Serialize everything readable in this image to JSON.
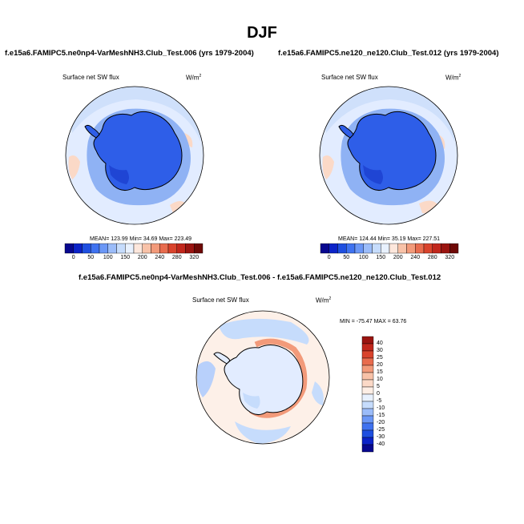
{
  "figure": {
    "title": "DJF"
  },
  "panels": [
    {
      "case_title": "f.e15a6.FAMIPC5.ne0np4-VarMeshNH3.Club_Test.006 (yrs 1979-2004)",
      "variable": "Surface net SW flux",
      "units": "W/m",
      "units_sup": "2",
      "stats": {
        "mean": "123.99",
        "min": "34.69",
        "max": "223.49"
      },
      "stats_text": "MEAN= 123.99  Min=  34.69  Max= 223.49"
    },
    {
      "case_title": "f.e15a6.FAMIPC5.ne120_ne120.Club_Test.012 (yrs 1979-2004)",
      "variable": "Surface net SW flux",
      "units": "W/m",
      "units_sup": "2",
      "stats": {
        "mean": "124.44",
        "min": "35.19",
        "max": "227.51"
      },
      "stats_text": "MEAN= 124.44  Min=  35.19  Max= 227.51"
    },
    {
      "case_title": "f.e15a6.FAMIPC5.ne0np4-VarMeshNH3.Club_Test.006 - f.e15a6.FAMIPC5.ne120_ne120.Club_Test.012",
      "variable": "Surface net SW flux",
      "units": "W/m",
      "units_sup": "2",
      "stats": {
        "min": "-75.47",
        "max": "63.76"
      },
      "stats_text": "MIN = -75.47 MAX =  63.76"
    }
  ],
  "colorbars": {
    "absolute": {
      "orientation": "horizontal",
      "tick_labels": [
        "0",
        "50",
        "100",
        "150",
        "200",
        "240",
        "280",
        "320"
      ],
      "colors": [
        "#08088f",
        "#0c23c8",
        "#1f4fe0",
        "#3f72f0",
        "#6b97f6",
        "#9bbcf9",
        "#c6dcfc",
        "#e8f1fe",
        "#fde7dc",
        "#f8c2a8",
        "#f29a7a",
        "#e86c4e",
        "#d9432c",
        "#c1271c",
        "#9a1410",
        "#6e0906"
      ]
    },
    "difference": {
      "orientation": "vertical",
      "tick_labels": [
        "40",
        "30",
        "25",
        "20",
        "15",
        "10",
        "5",
        "0",
        "-5",
        "-10",
        "-15",
        "-20",
        "-25",
        "-30",
        "-40"
      ],
      "colors": [
        "#9a1410",
        "#c1271c",
        "#d9432c",
        "#e86c4e",
        "#f29a7a",
        "#f8c2a8",
        "#fbd9c7",
        "#fdeee5",
        "#e8f1fe",
        "#c6dcfc",
        "#9bbcf9",
        "#6b97f6",
        "#3f72f0",
        "#1f4fe0",
        "#0c23c8",
        "#08088f"
      ]
    }
  },
  "map": {
    "projection": "polar stereographic (south pole)",
    "colors": {
      "ocean_light": "#e2ecff",
      "ocean_mid": "#cfe0fb",
      "ice_edge": "#8fb2f4",
      "continent": "#2e5ee8",
      "continent_dark": "#1f45d4",
      "coast": "#000000",
      "warm_patch": "#fbd9c7",
      "diff_base": "#fdf0e8",
      "diff_blue": "#b8d0fb",
      "diff_red": "#f29a7a"
    }
  }
}
